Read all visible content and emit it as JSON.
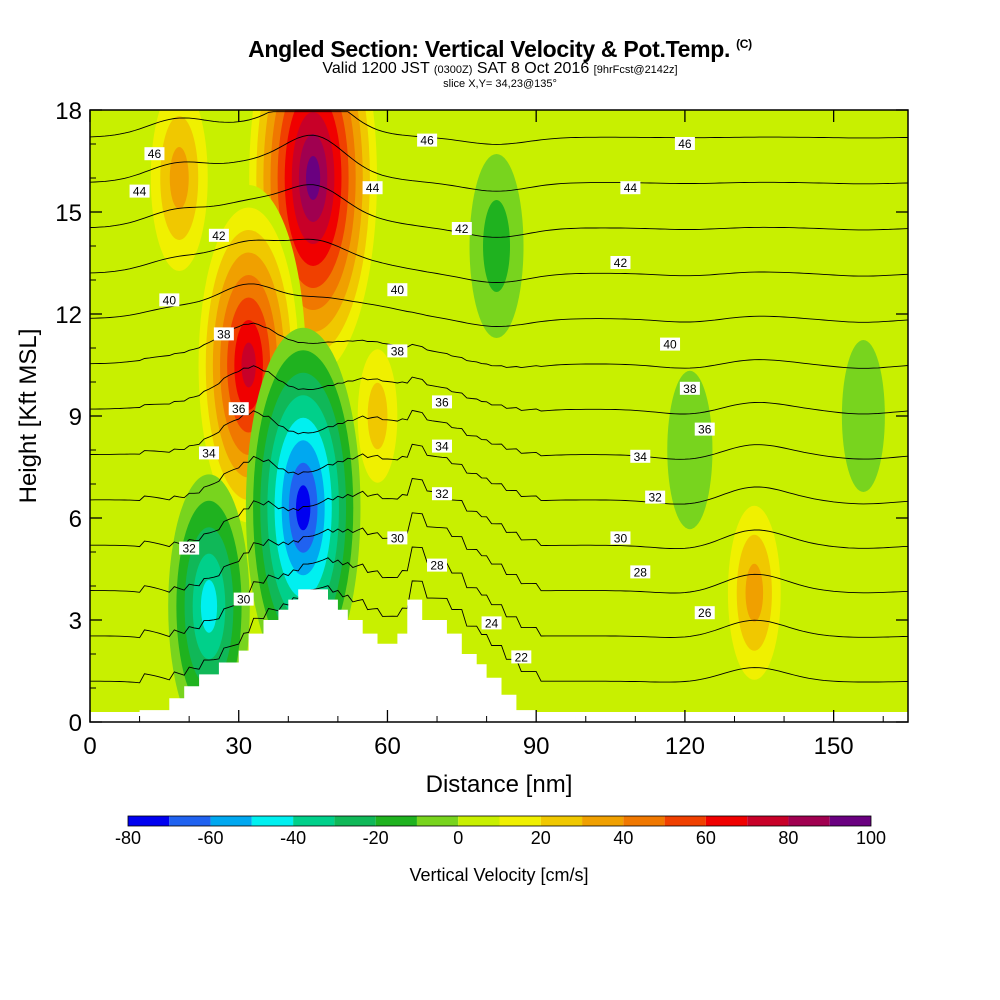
{
  "header": {
    "title": "Angled Section: Vertical Velocity & Pot.Temp.",
    "copyright_mark": "(C)",
    "subtitle_main": "Valid 1200 JST",
    "subtitle_utc": "(0300Z)",
    "subtitle_date": "SAT 8 Oct 2016",
    "subtitle_fcst": "[9hrFcst@2142z]",
    "slice_info": "slice X,Y= 34,23@135°"
  },
  "colors": {
    "colorbar": [
      "#0000f0",
      "#2062f0",
      "#00a8f0",
      "#00f0f0",
      "#00d08a",
      "#10b858",
      "#1fb21f",
      "#78d41e",
      "#c8f000",
      "#f0f000",
      "#f0c800",
      "#f0a000",
      "#f07800",
      "#f04000",
      "#f00000",
      "#c80028",
      "#a00050",
      "#6a0080"
    ],
    "background": "#c8f000",
    "terrain": "#ffffff"
  },
  "chart_data": {
    "type": "heatmap",
    "title": "Angled Section: Vertical Velocity & Pot.Temp.",
    "xlabel": "Distance [nm]",
    "ylabel": "Height [Kft MSL]",
    "xlim": [
      0,
      165
    ],
    "ylim": [
      0,
      18
    ],
    "x_ticks": [
      0,
      30,
      60,
      90,
      120,
      150
    ],
    "y_ticks": [
      0,
      3,
      6,
      9,
      12,
      15,
      18
    ],
    "colorbar": {
      "label": "Vertical Velocity [cm/s]",
      "range": [
        -80,
        100
      ],
      "step": 10,
      "tick_labels": [
        -80,
        -60,
        -40,
        -20,
        0,
        20,
        40,
        60,
        80,
        100
      ]
    },
    "contour_variable": "potential temperature",
    "contour_levels": [
      22,
      24,
      26,
      28,
      30,
      32,
      34,
      36,
      38,
      40,
      42,
      44,
      46
    ],
    "contour_labels": [
      {
        "value": 46,
        "x": 13,
        "y": 16.7
      },
      {
        "value": 44,
        "x": 10,
        "y": 15.6
      },
      {
        "value": 42,
        "x": 26,
        "y": 14.3
      },
      {
        "value": 40,
        "x": 16,
        "y": 12.4
      },
      {
        "value": 38,
        "x": 27,
        "y": 11.4
      },
      {
        "value": 36,
        "x": 30,
        "y": 9.2
      },
      {
        "value": 34,
        "x": 24,
        "y": 7.9
      },
      {
        "value": 32,
        "x": 20,
        "y": 5.1
      },
      {
        "value": 30,
        "x": 31,
        "y": 3.6
      },
      {
        "value": 46,
        "x": 68,
        "y": 17.1
      },
      {
        "value": 44,
        "x": 57,
        "y": 15.7
      },
      {
        "value": 42,
        "x": 75,
        "y": 14.5
      },
      {
        "value": 40,
        "x": 62,
        "y": 12.7
      },
      {
        "value": 38,
        "x": 62,
        "y": 10.9
      },
      {
        "value": 36,
        "x": 71,
        "y": 9.4
      },
      {
        "value": 34,
        "x": 71,
        "y": 8.1
      },
      {
        "value": 32,
        "x": 71,
        "y": 6.7
      },
      {
        "value": 30,
        "x": 62,
        "y": 5.4
      },
      {
        "value": 28,
        "x": 70,
        "y": 4.6
      },
      {
        "value": 24,
        "x": 81,
        "y": 2.9
      },
      {
        "value": 22,
        "x": 87,
        "y": 1.9
      },
      {
        "value": 46,
        "x": 120,
        "y": 17.0
      },
      {
        "value": 44,
        "x": 109,
        "y": 15.7
      },
      {
        "value": 42,
        "x": 107,
        "y": 13.5
      },
      {
        "value": 40,
        "x": 117,
        "y": 11.1
      },
      {
        "value": 38,
        "x": 121,
        "y": 9.8
      },
      {
        "value": 36,
        "x": 124,
        "y": 8.6
      },
      {
        "value": 34,
        "x": 111,
        "y": 7.8
      },
      {
        "value": 32,
        "x": 114,
        "y": 6.6
      },
      {
        "value": 30,
        "x": 107,
        "y": 5.4
      },
      {
        "value": 28,
        "x": 111,
        "y": 4.4
      },
      {
        "value": 26,
        "x": 124,
        "y": 3.2
      }
    ],
    "terrain_profile": {
      "x": [
        0,
        10,
        10,
        16,
        16,
        19,
        19,
        22,
        22,
        26,
        26,
        30,
        30,
        32,
        32,
        35,
        35,
        38,
        38,
        40,
        40,
        42,
        42,
        48,
        48,
        50,
        50,
        52,
        52,
        55,
        55,
        58,
        58,
        62,
        62,
        64,
        64,
        67,
        67,
        72,
        72,
        75,
        75,
        78,
        78,
        80,
        80,
        83,
        83,
        86,
        86,
        90,
        90,
        165
      ],
      "y": [
        0,
        0,
        0.35,
        0.35,
        0.7,
        0.7,
        1.05,
        1.05,
        1.4,
        1.4,
        1.75,
        1.75,
        2.1,
        2.1,
        2.6,
        2.6,
        3.0,
        3.0,
        3.3,
        3.3,
        3.6,
        3.6,
        3.9,
        3.9,
        3.6,
        3.6,
        3.3,
        3.3,
        3.0,
        3.0,
        2.6,
        2.6,
        2.3,
        2.3,
        2.6,
        2.6,
        3.6,
        3.6,
        3.0,
        3.0,
        2.6,
        2.6,
        2.0,
        2.0,
        1.7,
        1.7,
        1.3,
        1.3,
        0.8,
        0.8,
        0.35,
        0.35,
        0,
        0
      ]
    },
    "velocity_features": [
      {
        "kind": "updraft",
        "x": 45,
        "y": 16.0,
        "peak": 100
      },
      {
        "kind": "updraft",
        "x": 32,
        "y": 10.5,
        "peak": 75
      },
      {
        "kind": "updraft",
        "x": 18,
        "y": 16.0,
        "peak": 40
      },
      {
        "kind": "updraft",
        "x": 134,
        "y": 3.8,
        "peak": 35
      },
      {
        "kind": "updraft",
        "x": 58,
        "y": 9.0,
        "peak": 25
      },
      {
        "kind": "downdraft",
        "x": 43,
        "y": 6.3,
        "peak": -75
      },
      {
        "kind": "downdraft",
        "x": 24,
        "y": 3.4,
        "peak": -45
      },
      {
        "kind": "downdraft",
        "x": 82,
        "y": 14.0,
        "peak": -20
      },
      {
        "kind": "downdraft",
        "x": 121,
        "y": 8.0,
        "peak": -12
      },
      {
        "kind": "downdraft",
        "x": 156,
        "y": 9.0,
        "peak": -10
      }
    ]
  }
}
